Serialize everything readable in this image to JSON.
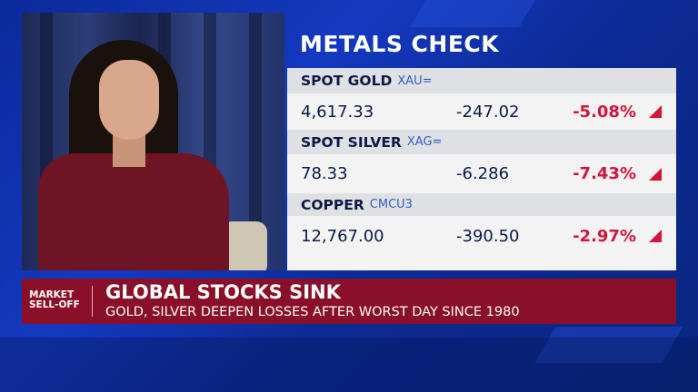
{
  "title": "METALS CHECK",
  "metals": [
    {
      "name": "SPOT GOLD",
      "code": "XAU=",
      "price": "4,617.33",
      "change": "-247.02",
      "pct": "-5.08%",
      "direction": "down"
    },
    {
      "name": "SPOT SILVER",
      "code": "XAG=",
      "price": "78.33",
      "change": "-6.286",
      "pct": "-7.43%",
      "direction": "down"
    },
    {
      "name": "COPPER",
      "code": "CMCU3",
      "price": "12,767.00",
      "change": "-390.50",
      "pct": "-2.97%",
      "direction": "down"
    }
  ],
  "lower_third": {
    "tag_line1": "MARKET",
    "tag_line2": "SELL-OFF",
    "headline": "GLOBAL STOCKS SINK",
    "subhead": "GOLD, SILVER DEEPEN LOSSES AFTER WORST DAY SINCE 1980"
  },
  "colors": {
    "negative": "#d4143c",
    "banner": "#8a0f28",
    "background": "#1439c0"
  }
}
